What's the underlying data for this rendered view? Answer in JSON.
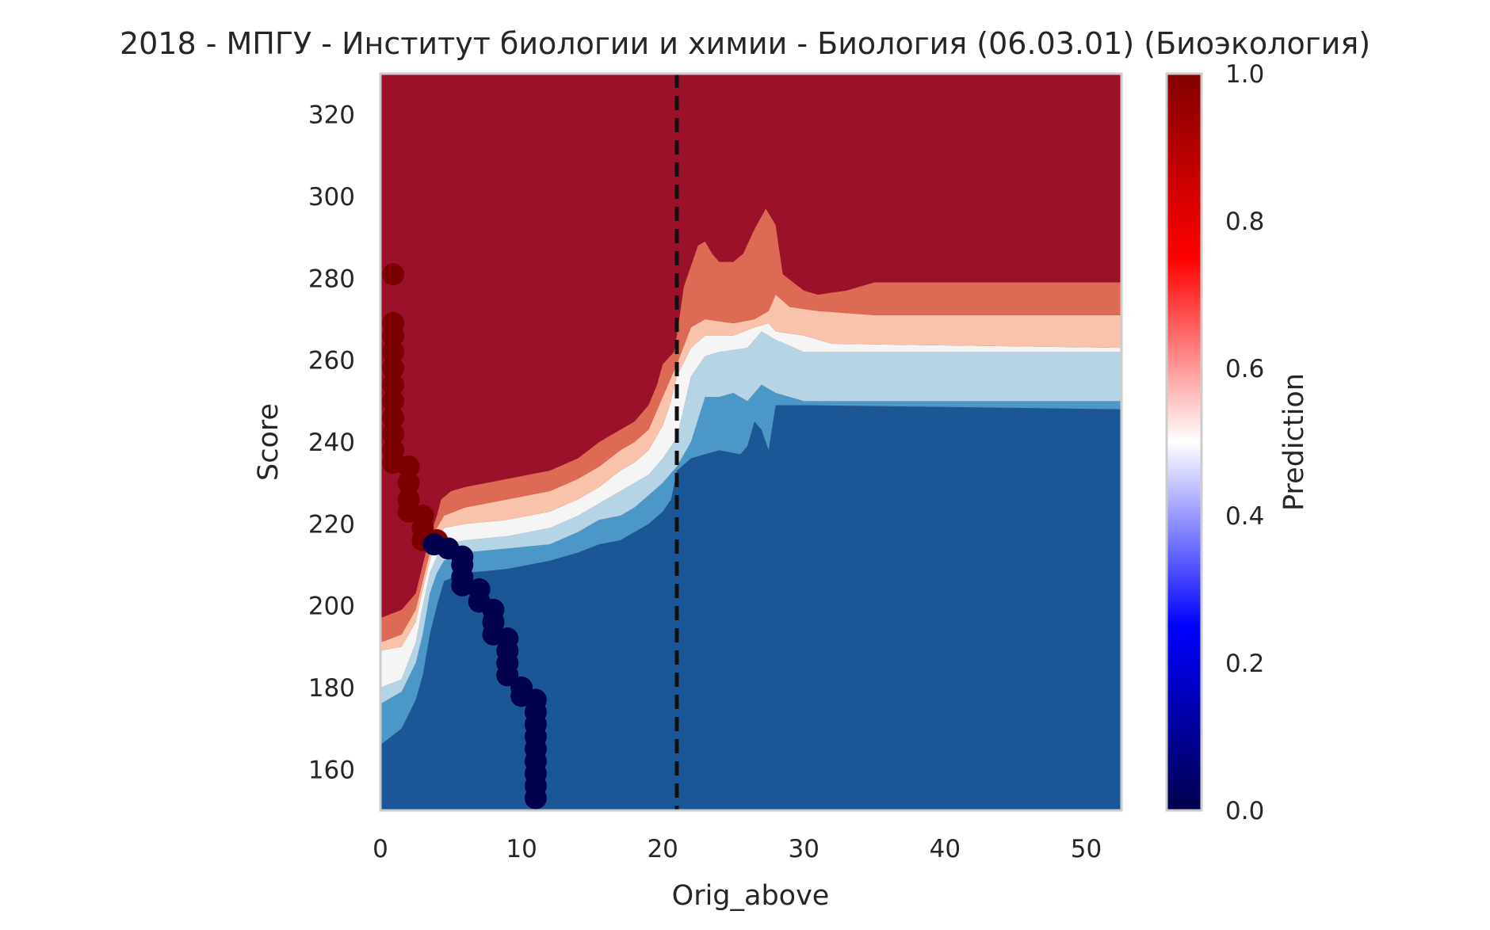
{
  "chart_data": {
    "type": "heatmap",
    "title": "2018 - МПГУ - Институт биологии и химии - Биология (06.03.01) (Биоэкология)",
    "xlabel": "Orig_above",
    "ylabel": "Score",
    "xlim": [
      0,
      52.5
    ],
    "ylim": [
      150,
      330
    ],
    "x_ticks": [
      0,
      10,
      20,
      30,
      40,
      50
    ],
    "y_ticks": [
      160,
      180,
      200,
      220,
      240,
      260,
      280,
      300,
      320
    ],
    "grid": false,
    "vertical_reference_line": {
      "x": 21,
      "style": "dashed",
      "color": "#111111"
    },
    "colorbar": {
      "label": "Prediction",
      "range": [
        0,
        1
      ],
      "ticks": [
        "0.0",
        "0.2",
        "0.4",
        "0.6",
        "0.8",
        "1.0"
      ],
      "colormap": "seismic",
      "stops": [
        "#00004c",
        "#0000ff",
        "#ffffff",
        "#ff0000",
        "#800000"
      ]
    },
    "contour_levels": [
      {
        "level": 0.1,
        "color": "#1b5797"
      },
      {
        "level": 0.3,
        "color": "#4b98c8"
      },
      {
        "level": 0.4,
        "color": "#b5d5e7"
      },
      {
        "level": 0.5,
        "color": "#f5f5f5"
      },
      {
        "level": 0.6,
        "color": "#f8c3aa"
      },
      {
        "level": 0.7,
        "color": "#dc6a55"
      },
      {
        "level": 0.9,
        "color": "#9b1129"
      }
    ],
    "boundaries": [
      {
        "name": "0.9",
        "points": [
          [
            0,
            197
          ],
          [
            1.5,
            199
          ],
          [
            2.5,
            203
          ],
          [
            3,
            210
          ],
          [
            3.5,
            217
          ],
          [
            4,
            222
          ],
          [
            4.3,
            226
          ],
          [
            5,
            228
          ],
          [
            6,
            229
          ],
          [
            9,
            231
          ],
          [
            12,
            233
          ],
          [
            14,
            236
          ],
          [
            15.5,
            240
          ],
          [
            17,
            243
          ],
          [
            18,
            245
          ],
          [
            19,
            249
          ],
          [
            19.6,
            254
          ],
          [
            20,
            259
          ],
          [
            20.8,
            262
          ],
          [
            21,
            266
          ],
          [
            21.5,
            278
          ],
          [
            22,
            283
          ],
          [
            22.5,
            288
          ],
          [
            23,
            289
          ],
          [
            23.5,
            286
          ],
          [
            24,
            284
          ],
          [
            25,
            284
          ],
          [
            25.7,
            286
          ],
          [
            26.5,
            292
          ],
          [
            27.3,
            297
          ],
          [
            28,
            293
          ],
          [
            28.5,
            281
          ],
          [
            30,
            277
          ],
          [
            31,
            276
          ],
          [
            33,
            277
          ],
          [
            35,
            279
          ],
          [
            52.5,
            279
          ]
        ]
      },
      {
        "name": "0.7",
        "points": [
          [
            0,
            191
          ],
          [
            1.5,
            193
          ],
          [
            2.5,
            199
          ],
          [
            3,
            206
          ],
          [
            3.5,
            213
          ],
          [
            4,
            219
          ],
          [
            4.5,
            222
          ],
          [
            6,
            224
          ],
          [
            9,
            226
          ],
          [
            12,
            228
          ],
          [
            14,
            231
          ],
          [
            15.5,
            234
          ],
          [
            17,
            238
          ],
          [
            18,
            240
          ],
          [
            19,
            243
          ],
          [
            19.5,
            247
          ],
          [
            20,
            251
          ],
          [
            20.5,
            255
          ],
          [
            21,
            259
          ],
          [
            22,
            268
          ],
          [
            23,
            270
          ],
          [
            25,
            269
          ],
          [
            26.5,
            270
          ],
          [
            27.5,
            272
          ],
          [
            28,
            276
          ],
          [
            29,
            273
          ],
          [
            31,
            272
          ],
          [
            35,
            271
          ],
          [
            52.5,
            271
          ]
        ]
      },
      {
        "name": "0.6",
        "points": [
          [
            0,
            189
          ],
          [
            1.5,
            190
          ],
          [
            2.5,
            196
          ],
          [
            3,
            204
          ],
          [
            3.5,
            211
          ],
          [
            4,
            216
          ],
          [
            4.5,
            219
          ],
          [
            6,
            220
          ],
          [
            9,
            221
          ],
          [
            12,
            223
          ],
          [
            14,
            226
          ],
          [
            15.5,
            229
          ],
          [
            17,
            233
          ],
          [
            18,
            235
          ],
          [
            19,
            238
          ],
          [
            19.5,
            241
          ],
          [
            20,
            244
          ],
          [
            20.5,
            249
          ],
          [
            21,
            256
          ],
          [
            22,
            263
          ],
          [
            23,
            266
          ],
          [
            25,
            266
          ],
          [
            26.5,
            268
          ],
          [
            27.5,
            269
          ],
          [
            28,
            267
          ],
          [
            30,
            266
          ],
          [
            32,
            264
          ],
          [
            52.5,
            263
          ]
        ]
      },
      {
        "name": "0.5",
        "points": [
          [
            0,
            180
          ],
          [
            1.5,
            182
          ],
          [
            2.5,
            191
          ],
          [
            3,
            200
          ],
          [
            3.5,
            208
          ],
          [
            4,
            212
          ],
          [
            4.5,
            215
          ],
          [
            6,
            216
          ],
          [
            9,
            217
          ],
          [
            12,
            219
          ],
          [
            14,
            222
          ],
          [
            15.5,
            225
          ],
          [
            17,
            228
          ],
          [
            18,
            230
          ],
          [
            19,
            232
          ],
          [
            20,
            236
          ],
          [
            21,
            241
          ],
          [
            22,
            256
          ],
          [
            23,
            261
          ],
          [
            24,
            262
          ],
          [
            26,
            263
          ],
          [
            27,
            267
          ],
          [
            28,
            265
          ],
          [
            30,
            262
          ],
          [
            52.5,
            262
          ]
        ]
      },
      {
        "name": "0.4",
        "points": [
          [
            0,
            176
          ],
          [
            1.5,
            179
          ],
          [
            2.5,
            186
          ],
          [
            3,
            193
          ],
          [
            3.5,
            203
          ],
          [
            4,
            208
          ],
          [
            4.5,
            211
          ],
          [
            6,
            213
          ],
          [
            9,
            214
          ],
          [
            12,
            215
          ],
          [
            14,
            218
          ],
          [
            15.5,
            221
          ],
          [
            17,
            222
          ],
          [
            18,
            224
          ],
          [
            19,
            227
          ],
          [
            20,
            230
          ],
          [
            21,
            234
          ],
          [
            22,
            240
          ],
          [
            23,
            251
          ],
          [
            24,
            251
          ],
          [
            25,
            252
          ],
          [
            26,
            250
          ],
          [
            27,
            254
          ],
          [
            28,
            252
          ],
          [
            30,
            250
          ],
          [
            52.5,
            250
          ]
        ]
      },
      {
        "name": "0.3",
        "points": [
          [
            0,
            166
          ],
          [
            1.5,
            170
          ],
          [
            2.5,
            177
          ],
          [
            3,
            183
          ],
          [
            3.5,
            193
          ],
          [
            4,
            200
          ],
          [
            4.5,
            206
          ],
          [
            6,
            208
          ],
          [
            9,
            209
          ],
          [
            12,
            211
          ],
          [
            14,
            213
          ],
          [
            15.5,
            215
          ],
          [
            17,
            216
          ],
          [
            18,
            218
          ],
          [
            19,
            220
          ],
          [
            20,
            223
          ],
          [
            20.6,
            226
          ],
          [
            21,
            233
          ],
          [
            22,
            236
          ],
          [
            24,
            238
          ],
          [
            25.5,
            237
          ],
          [
            26,
            239
          ],
          [
            26.5,
            245
          ],
          [
            27,
            243
          ],
          [
            27.5,
            238
          ],
          [
            28,
            249
          ],
          [
            30,
            249
          ],
          [
            52.5,
            248
          ]
        ]
      }
    ],
    "scatter_series": [
      {
        "color_value": 1.0,
        "color": "#7a0000",
        "points": [
          [
            0.9,
            281
          ],
          [
            0.9,
            269
          ],
          [
            0.9,
            266
          ],
          [
            0.9,
            262
          ],
          [
            0.9,
            258
          ],
          [
            0.9,
            254
          ],
          [
            0.9,
            250
          ],
          [
            0.9,
            246
          ],
          [
            0.9,
            242
          ],
          [
            0.9,
            238
          ],
          [
            0.9,
            235
          ],
          [
            2,
            234
          ],
          [
            2,
            230
          ],
          [
            2,
            226
          ],
          [
            2,
            223
          ],
          [
            3,
            222
          ],
          [
            3,
            219
          ],
          [
            3,
            216
          ],
          [
            4,
            216
          ]
        ]
      },
      {
        "color_value": 0.0,
        "color": "#00004c",
        "points": [
          [
            3.8,
            215
          ],
          [
            4.8,
            214
          ],
          [
            5.8,
            212
          ],
          [
            5.8,
            210
          ],
          [
            5.8,
            207
          ],
          [
            5.8,
            205
          ],
          [
            7,
            204
          ],
          [
            7,
            201
          ],
          [
            8,
            199
          ],
          [
            8,
            196
          ],
          [
            8,
            193
          ],
          [
            9,
            192
          ],
          [
            9,
            189
          ],
          [
            9,
            186
          ],
          [
            9,
            183
          ],
          [
            10,
            180
          ],
          [
            10,
            178
          ],
          [
            11,
            177
          ],
          [
            11,
            174
          ],
          [
            11,
            171
          ],
          [
            11,
            168
          ],
          [
            11,
            165
          ],
          [
            11,
            162
          ],
          [
            11,
            159
          ],
          [
            11,
            156
          ],
          [
            11,
            153
          ]
        ]
      }
    ]
  }
}
